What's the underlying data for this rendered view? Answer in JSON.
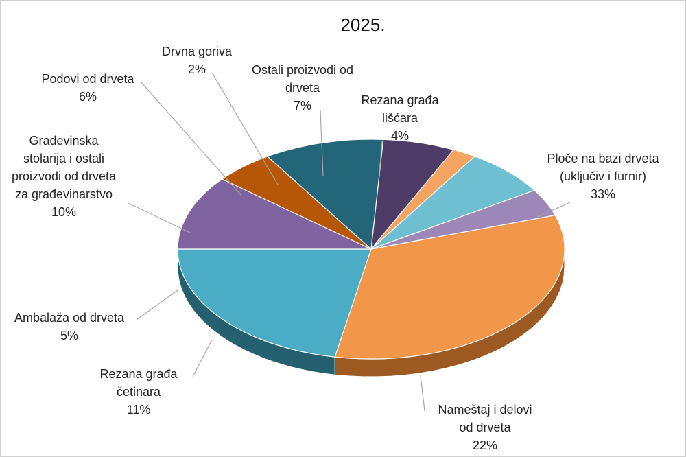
{
  "chart_data": {
    "type": "pie",
    "title": "2025.",
    "legend": "none",
    "slices": [
      {
        "label": [
          "Ploče na bazi drveta",
          "(uključiv i furnir)"
        ],
        "value_label": "33%",
        "value": 33,
        "color": "#F2964A",
        "side": "#9C5A22"
      },
      {
        "label": [
          "Nameštaj i delovi",
          "od drveta"
        ],
        "value_label": "22%",
        "value": 22,
        "color": "#4BACC6",
        "side": "#24606F"
      },
      {
        "label": [
          "Rezana građa",
          "četinara"
        ],
        "value_label": "11%",
        "value": 11,
        "color": "#8064A2",
        "side": "#4A3A60"
      },
      {
        "label": [
          "Ambalaža od drveta"
        ],
        "value_label": "5%",
        "value": 5,
        "color": "#B65708",
        "side": "#6E3505"
      },
      {
        "label": [
          "Građevinska",
          "stolarija i ostali",
          "proizvodi od drveta",
          "za građevinarstvo"
        ],
        "value_label": "10%",
        "value": 10,
        "color": "#23667A",
        "side": "#133A46"
      },
      {
        "label": [
          "Podovi od drveta"
        ],
        "value_label": "6%",
        "value": 6,
        "color": "#4F3B68",
        "side": "#2C213A"
      },
      {
        "label": [
          "Drvna goriva"
        ],
        "value_label": "2%",
        "value": 2,
        "color": "#F4A460",
        "side": "#A56A35"
      },
      {
        "label": [
          "Ostali proizvodi od",
          "drveta"
        ],
        "value_label": "7%",
        "value": 7,
        "color": "#6FBFD2",
        "side": "#3B7C8C"
      },
      {
        "label": [
          "Rezana građa",
          "lišćara"
        ],
        "value_label": "4%",
        "value": 4,
        "color": "#9D86B8",
        "side": "#5E4E72"
      }
    ]
  }
}
